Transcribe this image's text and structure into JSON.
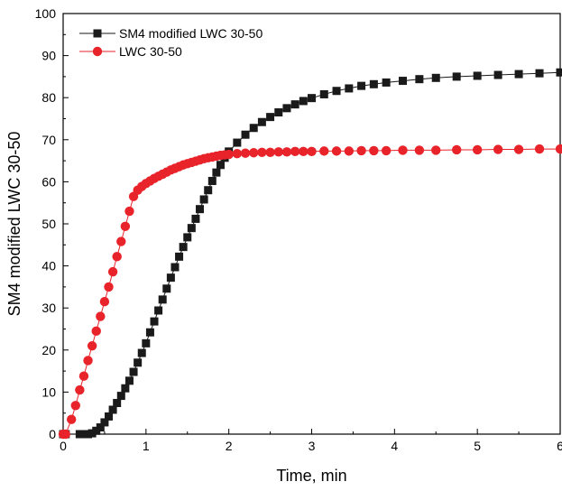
{
  "chart_data": {
    "type": "line",
    "xlabel": "Time, min",
    "ylabel": "SM4 modified LWC 30-50",
    "xlim": [
      0,
      6
    ],
    "ylim": [
      0,
      100
    ],
    "xticks": [
      "0",
      "1",
      "2",
      "3",
      "4",
      "5",
      "6"
    ],
    "yticks": [
      "0",
      "10",
      "20",
      "30",
      "40",
      "50",
      "60",
      "70",
      "80",
      "90",
      "100"
    ],
    "grid": false,
    "legend_position": "top-left",
    "series": [
      {
        "name": "SM4 modified LWC 30-50",
        "marker": "square",
        "color": "#1a1a1a",
        "points": [
          [
            0.0,
            0.0
          ],
          [
            0.03,
            0.0
          ],
          [
            0.2,
            0.0
          ],
          [
            0.25,
            0.0
          ],
          [
            0.3,
            0.0
          ],
          [
            0.35,
            0.2
          ],
          [
            0.4,
            0.8
          ],
          [
            0.45,
            1.6
          ],
          [
            0.5,
            2.8
          ],
          [
            0.55,
            4.2
          ],
          [
            0.6,
            5.8
          ],
          [
            0.65,
            7.4
          ],
          [
            0.7,
            9.1
          ],
          [
            0.75,
            10.9
          ],
          [
            0.8,
            12.7
          ],
          [
            0.85,
            14.8
          ],
          [
            0.9,
            17.0
          ],
          [
            0.95,
            19.3
          ],
          [
            1.0,
            21.6
          ],
          [
            1.05,
            24.2
          ],
          [
            1.1,
            26.8
          ],
          [
            1.15,
            29.4
          ],
          [
            1.2,
            32.0
          ],
          [
            1.25,
            34.6
          ],
          [
            1.3,
            37.2
          ],
          [
            1.35,
            39.7
          ],
          [
            1.4,
            42.2
          ],
          [
            1.45,
            44.5
          ],
          [
            1.5,
            46.8
          ],
          [
            1.55,
            49.0
          ],
          [
            1.6,
            51.2
          ],
          [
            1.65,
            53.5
          ],
          [
            1.7,
            55.8
          ],
          [
            1.75,
            58.0
          ],
          [
            1.8,
            60.2
          ],
          [
            1.85,
            62.2
          ],
          [
            1.9,
            64.0
          ],
          [
            1.95,
            65.7
          ],
          [
            2.0,
            67.2
          ],
          [
            2.1,
            69.3
          ],
          [
            2.2,
            71.2
          ],
          [
            2.3,
            72.8
          ],
          [
            2.4,
            74.2
          ],
          [
            2.5,
            75.4
          ],
          [
            2.6,
            76.5
          ],
          [
            2.7,
            77.5
          ],
          [
            2.8,
            78.4
          ],
          [
            2.9,
            79.2
          ],
          [
            3.0,
            79.9
          ],
          [
            3.15,
            80.8
          ],
          [
            3.3,
            81.6
          ],
          [
            3.45,
            82.2
          ],
          [
            3.6,
            82.8
          ],
          [
            3.75,
            83.2
          ],
          [
            3.9,
            83.6
          ],
          [
            4.1,
            84.0
          ],
          [
            4.3,
            84.4
          ],
          [
            4.5,
            84.7
          ],
          [
            4.75,
            85.0
          ],
          [
            5.0,
            85.2
          ],
          [
            5.25,
            85.4
          ],
          [
            5.5,
            85.6
          ],
          [
            5.75,
            85.8
          ],
          [
            6.0,
            86.0
          ]
        ]
      },
      {
        "name": "LWC 30-50",
        "marker": "circle",
        "color": "#e8232a",
        "points": [
          [
            0.0,
            0.0
          ],
          [
            0.03,
            0.0
          ],
          [
            0.1,
            3.5
          ],
          [
            0.15,
            6.8
          ],
          [
            0.2,
            10.5
          ],
          [
            0.25,
            13.8
          ],
          [
            0.3,
            17.5
          ],
          [
            0.35,
            21.0
          ],
          [
            0.4,
            24.5
          ],
          [
            0.45,
            28.0
          ],
          [
            0.5,
            31.5
          ],
          [
            0.55,
            35.0
          ],
          [
            0.6,
            38.6
          ],
          [
            0.65,
            42.2
          ],
          [
            0.7,
            45.8
          ],
          [
            0.75,
            49.4
          ],
          [
            0.8,
            53.0
          ],
          [
            0.85,
            56.5
          ],
          [
            0.9,
            58.0
          ],
          [
            0.95,
            58.9
          ],
          [
            1.0,
            59.6
          ],
          [
            1.05,
            60.2
          ],
          [
            1.1,
            60.8
          ],
          [
            1.15,
            61.3
          ],
          [
            1.2,
            61.8
          ],
          [
            1.25,
            62.3
          ],
          [
            1.3,
            62.8
          ],
          [
            1.35,
            63.2
          ],
          [
            1.4,
            63.6
          ],
          [
            1.45,
            64.0
          ],
          [
            1.5,
            64.3
          ],
          [
            1.55,
            64.6
          ],
          [
            1.6,
            64.9
          ],
          [
            1.65,
            65.2
          ],
          [
            1.7,
            65.5
          ],
          [
            1.75,
            65.7
          ],
          [
            1.8,
            65.9
          ],
          [
            1.85,
            66.1
          ],
          [
            1.9,
            66.3
          ],
          [
            1.95,
            66.4
          ],
          [
            2.0,
            66.5
          ],
          [
            2.1,
            66.7
          ],
          [
            2.2,
            66.8
          ],
          [
            2.3,
            66.9
          ],
          [
            2.4,
            67.0
          ],
          [
            2.5,
            67.0
          ],
          [
            2.6,
            67.1
          ],
          [
            2.7,
            67.1
          ],
          [
            2.8,
            67.2
          ],
          [
            2.9,
            67.2
          ],
          [
            3.0,
            67.2
          ],
          [
            3.15,
            67.3
          ],
          [
            3.3,
            67.3
          ],
          [
            3.45,
            67.3
          ],
          [
            3.6,
            67.4
          ],
          [
            3.75,
            67.4
          ],
          [
            3.9,
            67.4
          ],
          [
            4.1,
            67.5
          ],
          [
            4.3,
            67.5
          ],
          [
            4.5,
            67.5
          ],
          [
            4.75,
            67.6
          ],
          [
            5.0,
            67.6
          ],
          [
            5.25,
            67.7
          ],
          [
            5.5,
            67.7
          ],
          [
            5.75,
            67.8
          ],
          [
            6.0,
            67.8
          ]
        ]
      }
    ]
  }
}
